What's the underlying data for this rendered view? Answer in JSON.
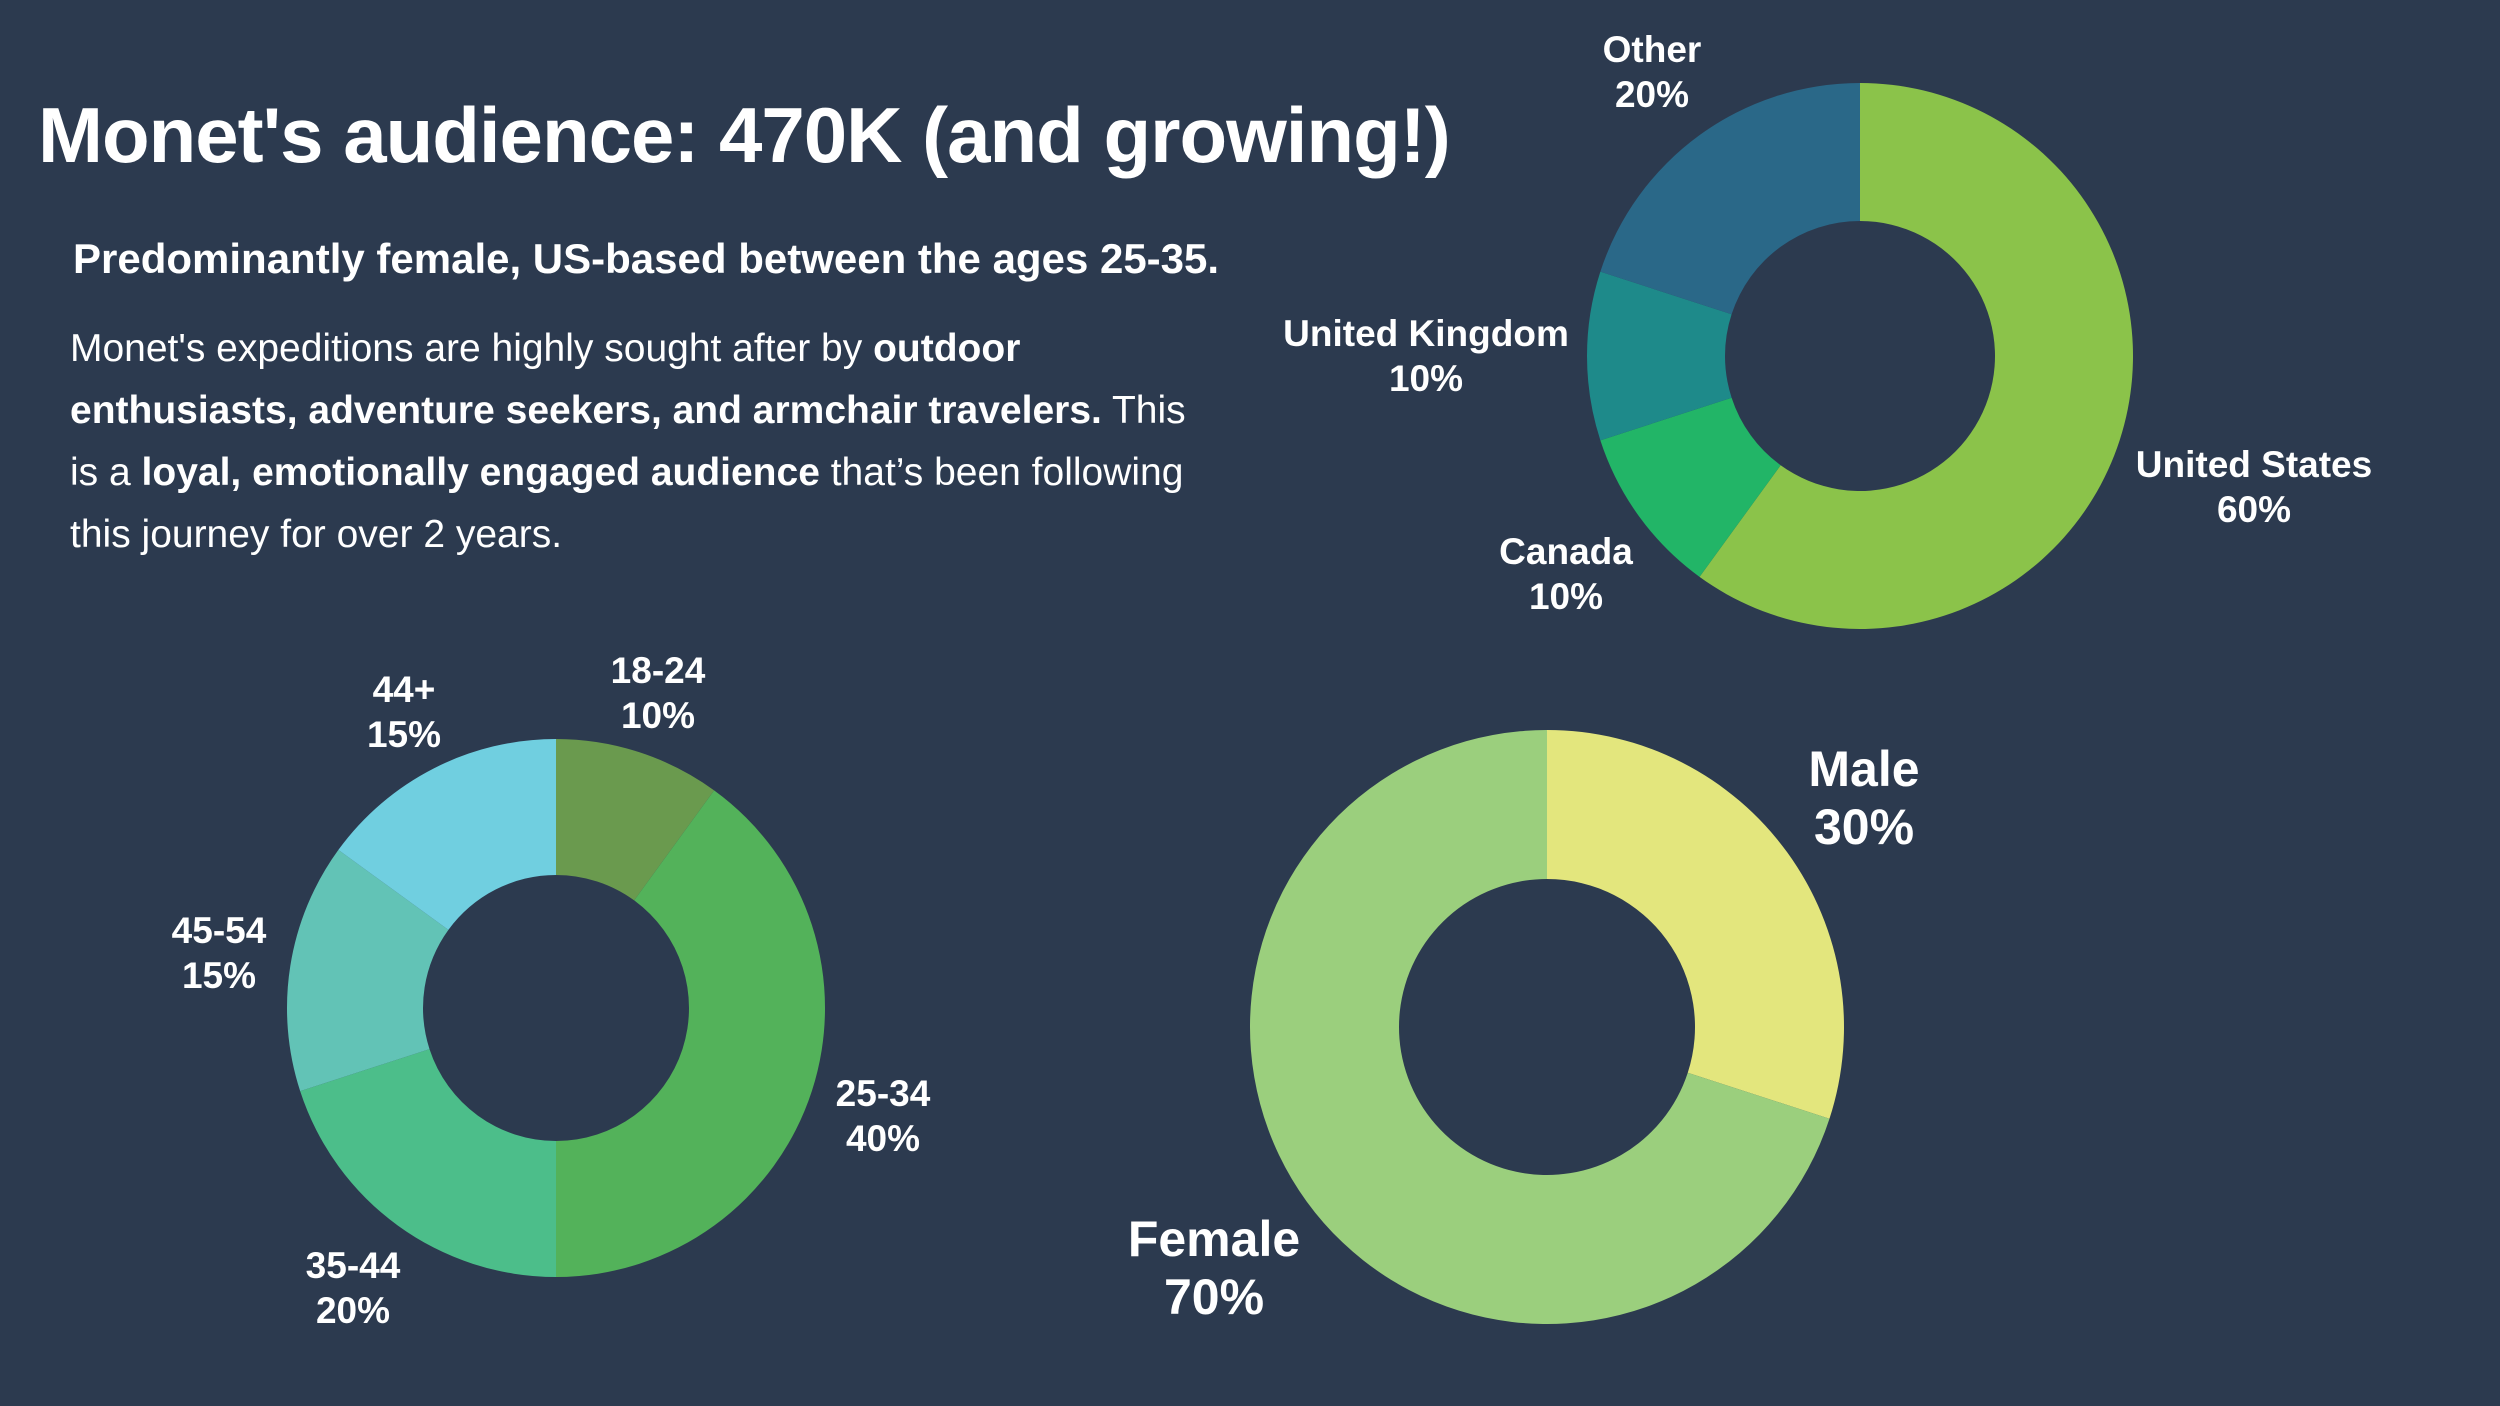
{
  "header": {
    "title": "Monet's audience: 470K (and growing!)",
    "subtitle": "Predominantly female, US-based between the ages 25-35."
  },
  "body": {
    "segments": [
      {
        "text": "Monet's expeditions are highly sought after by ",
        "bold": false
      },
      {
        "text": "outdoor enthusiasts, adventure seekers, and armchair travelers.",
        "bold": true
      },
      {
        "text": " This is a ",
        "bold": false
      },
      {
        "text": "loyal, emotionally engaged audience",
        "bold": true
      },
      {
        "text": " that’s been following this journey for over 2 years.",
        "bold": false
      }
    ]
  },
  "theme": {
    "background": "#2c3a4f",
    "text": "#ffffff"
  },
  "chart_data": [
    {
      "type": "pie",
      "donut": true,
      "dimension": "country",
      "categories": [
        "United States",
        "Canada",
        "United Kingdom",
        "Other"
      ],
      "values": [
        60,
        10,
        10,
        20
      ],
      "value_labels": [
        "60%",
        "10%",
        "10%",
        "20%"
      ],
      "colors": [
        "#8bc34a",
        "#22b567",
        "#1e8a8a",
        "#2a6888"
      ]
    },
    {
      "type": "pie",
      "donut": true,
      "dimension": "age",
      "categories": [
        "18-24",
        "25-34",
        "35-44",
        "45-54",
        "44+"
      ],
      "values": [
        10,
        40,
        20,
        15,
        15
      ],
      "value_labels": [
        "10%",
        "40%",
        "20%",
        "15%",
        "15%"
      ],
      "colors": [
        "#6a9a4e",
        "#53b25a",
        "#4cbe8a",
        "#62c3b6",
        "#70cfe0"
      ]
    },
    {
      "type": "pie",
      "donut": true,
      "dimension": "gender",
      "categories": [
        "Male",
        "Female"
      ],
      "values": [
        30,
        70
      ],
      "value_labels": [
        "30%",
        "70%"
      ],
      "colors": [
        "#e3e67d",
        "#9bcf7d"
      ]
    }
  ]
}
